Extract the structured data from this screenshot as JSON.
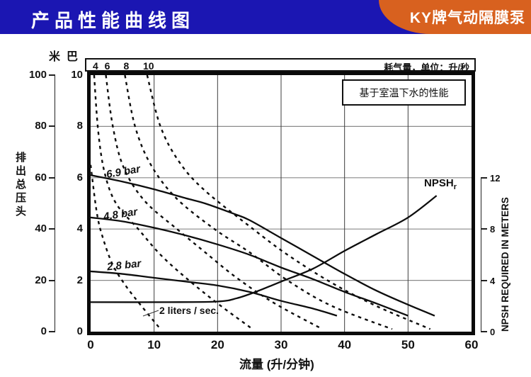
{
  "header": {
    "title": "产品性能曲线图",
    "badge": "KY牌气动隔膜泵",
    "bg_color": "#1b16b2",
    "badge_color": "#d8611f",
    "text_color": "#ffffff"
  },
  "chart_data": {
    "type": "line",
    "note": "基于室温下水的性能",
    "air_band": {
      "label": "耗气量，单位：升/秒",
      "tick_labels": [
        "4",
        "6",
        "8",
        "10"
      ],
      "tick_q": [
        0.55,
        2.4,
        5.4,
        8.9
      ]
    },
    "x_axis": {
      "label": "流量 (升/分钟)",
      "ticks": [
        0,
        10,
        20,
        30,
        40,
        50,
        60
      ],
      "range": [
        0,
        60
      ],
      "gridlines": [
        10,
        20,
        30,
        40,
        50
      ]
    },
    "y_axis_meters": {
      "unit": "米",
      "title": "排出总压头",
      "ticks": [
        100,
        80,
        60,
        40,
        20,
        0
      ],
      "range": [
        0,
        100
      ]
    },
    "y_axis_bar": {
      "unit": "巴",
      "ticks": [
        10,
        8,
        6,
        4,
        2,
        0
      ],
      "range": [
        0,
        10
      ],
      "gridlines": [
        8,
        6,
        4,
        2
      ]
    },
    "y_axis_npsh": {
      "label": "NPSH REQUIRED IN METERS",
      "ticks": [
        12,
        8,
        4,
        0
      ],
      "range": [
        0,
        12
      ]
    },
    "head_curves": [
      {
        "name": "6.9bar",
        "label": "6.9 bar",
        "scale": "bar",
        "points": [
          [
            0,
            6.1
          ],
          [
            5,
            5.85
          ],
          [
            10,
            5.55
          ],
          [
            15,
            5.2
          ],
          [
            18,
            5.0
          ],
          [
            22.5,
            4.6
          ],
          [
            25,
            4.35
          ],
          [
            30,
            3.65
          ],
          [
            35,
            2.95
          ],
          [
            40,
            2.25
          ],
          [
            45,
            1.6
          ],
          [
            50,
            1.05
          ],
          [
            54.2,
            0.62
          ]
        ]
      },
      {
        "name": "4.8bar",
        "label": "4.8 bar",
        "scale": "bar",
        "points": [
          [
            0,
            4.45
          ],
          [
            5,
            4.3
          ],
          [
            10,
            4.05
          ],
          [
            15,
            3.75
          ],
          [
            20,
            3.4
          ],
          [
            25,
            3.0
          ],
          [
            30,
            2.5
          ],
          [
            35,
            2.05
          ],
          [
            40,
            1.55
          ],
          [
            45,
            1.1
          ],
          [
            50,
            0.62
          ]
        ]
      },
      {
        "name": "2.8bar",
        "label": "2.8 bar",
        "scale": "bar",
        "points": [
          [
            0,
            2.35
          ],
          [
            5,
            2.25
          ],
          [
            10,
            2.1
          ],
          [
            15,
            1.95
          ],
          [
            20,
            1.8
          ],
          [
            25,
            1.55
          ],
          [
            30,
            1.2
          ],
          [
            35,
            0.9
          ],
          [
            38.8,
            0.62
          ]
        ]
      }
    ],
    "npsh_curve": {
      "label": "NPSH",
      "label_sub": "r",
      "scale": "npsh",
      "points": [
        [
          0,
          2.3
        ],
        [
          12,
          2.3
        ],
        [
          20,
          2.35
        ],
        [
          23,
          2.6
        ],
        [
          26,
          3.1
        ],
        [
          30,
          3.9
        ],
        [
          35,
          4.9
        ],
        [
          40,
          6.3
        ],
        [
          45,
          7.6
        ],
        [
          50,
          8.9
        ],
        [
          54.5,
          10.6
        ]
      ]
    },
    "air_curves": [
      {
        "name": "2",
        "label": "2 liters / sec.",
        "scale": "bar",
        "points": [
          [
            0,
            6.5
          ],
          [
            1,
            4.6
          ],
          [
            2,
            3.6
          ],
          [
            3.5,
            2.6
          ],
          [
            5.5,
            1.8
          ],
          [
            8,
            1.0
          ],
          [
            11,
            0.1
          ]
        ]
      },
      {
        "name": "4",
        "scale": "bar",
        "points": [
          [
            0.55,
            10
          ],
          [
            1.2,
            7.8
          ],
          [
            2.2,
            6.2
          ],
          [
            4,
            5.0
          ],
          [
            7.5,
            4.0
          ],
          [
            11,
            3.0
          ],
          [
            15,
            2.1
          ],
          [
            20,
            1.1
          ],
          [
            25.5,
            0.1
          ]
        ]
      },
      {
        "name": "6",
        "scale": "bar",
        "points": [
          [
            2.4,
            10
          ],
          [
            3.5,
            8.0
          ],
          [
            5.2,
            6.4
          ],
          [
            8.5,
            5.1
          ],
          [
            13.6,
            4.0
          ],
          [
            18,
            3.1
          ],
          [
            23,
            2.1
          ],
          [
            29,
            1.1
          ],
          [
            36.5,
            0.1
          ]
        ]
      },
      {
        "name": "8",
        "scale": "bar",
        "points": [
          [
            5.4,
            10
          ],
          [
            7,
            8.0
          ],
          [
            9.5,
            6.5
          ],
          [
            13.5,
            5.2
          ],
          [
            19.5,
            4.0
          ],
          [
            25,
            3.1
          ],
          [
            31,
            2.0
          ],
          [
            38,
            1.0
          ],
          [
            47.5,
            0.1
          ]
        ]
      },
      {
        "name": "10",
        "scale": "bar",
        "points": [
          [
            8.9,
            10
          ],
          [
            11,
            8.0
          ],
          [
            14,
            6.6
          ],
          [
            18,
            5.5
          ],
          [
            25.6,
            4.0
          ],
          [
            31,
            3.0
          ],
          [
            38,
            1.9
          ],
          [
            45,
            1.0
          ],
          [
            53.5,
            0.1
          ]
        ]
      }
    ]
  }
}
